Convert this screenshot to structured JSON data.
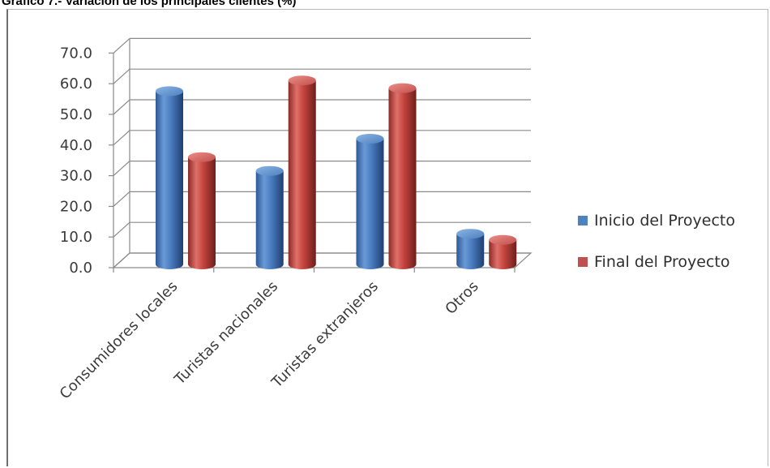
{
  "chart_data": {
    "type": "bar",
    "title": "Gráfico 7.- Variación de los principales clientes (%)",
    "categories": [
      "Consumidores locales",
      "Turistas nacionales",
      "Turistas extranjeros",
      "Otros"
    ],
    "series": [
      {
        "name": "Inicio del Proyecto",
        "values": [
          56.5,
          30.5,
          41.0,
          10.0
        ],
        "color": "#4f81bd"
      },
      {
        "name": "Final del Proyecto",
        "values": [
          35.0,
          60.0,
          57.5,
          8.0
        ],
        "color": "#c0504d"
      }
    ],
    "ylim": [
      0,
      70
    ],
    "yticks": [
      "0.0",
      "10.0",
      "20.0",
      "30.0",
      "40.0",
      "50.0",
      "60.0",
      "70.0"
    ],
    "xlabel": "",
    "ylabel": "",
    "grid": true,
    "legend_position": "right",
    "style": "3d-cylinder"
  }
}
